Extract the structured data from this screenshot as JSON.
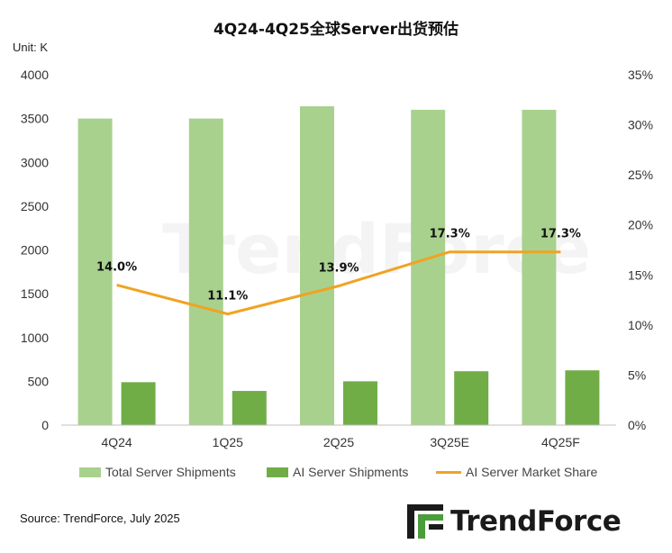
{
  "header": {
    "title": "4Q24-4Q25全球Server出货预估",
    "unit": "Unit: K"
  },
  "chart_data": {
    "type": "bar",
    "categories": [
      "4Q24",
      "1Q25",
      "2Q25",
      "3Q25E",
      "4Q25F"
    ],
    "series": [
      {
        "name": "Total Server Shipments",
        "kind": "bar",
        "axis": "left",
        "color": "#a9d18e",
        "values": [
          3500,
          3500,
          3640,
          3600,
          3600
        ]
      },
      {
        "name": "AI Server Shipments",
        "kind": "bar",
        "axis": "left",
        "color": "#70ad47",
        "values": [
          490,
          390,
          500,
          615,
          625
        ]
      },
      {
        "name": "AI Server Market Share",
        "kind": "line",
        "axis": "right",
        "color": "#f0a323",
        "values": [
          14.0,
          11.1,
          13.9,
          17.3,
          17.3
        ],
        "labels": [
          "14.0%",
          "11.1%",
          "13.9%",
          "17.3%",
          "17.3%"
        ]
      }
    ],
    "y_left": {
      "min": 0,
      "max": 4000,
      "ticks": [
        "0",
        "500",
        "1000",
        "1500",
        "2000",
        "2500",
        "3000",
        "3500",
        "4000"
      ]
    },
    "y_right": {
      "min": 0,
      "max": 35,
      "ticks": [
        "0%",
        "5%",
        "10%",
        "15%",
        "20%",
        "25%",
        "30%",
        "35%"
      ]
    },
    "legend_position": "bottom",
    "grid": false
  },
  "footer": {
    "source": "Source: TrendForce, July 2025",
    "logo_text": "TrendForce",
    "watermark_text": "TrendForce"
  }
}
